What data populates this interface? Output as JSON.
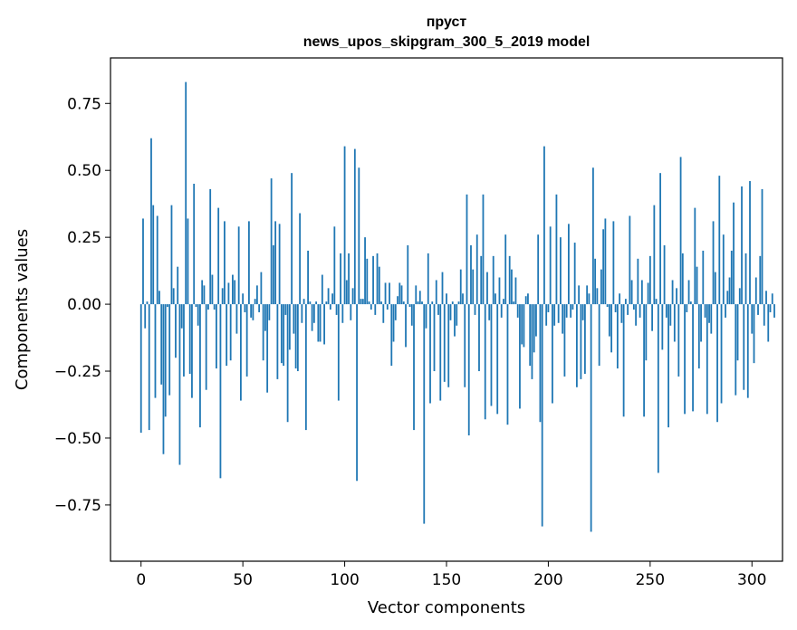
{
  "chart_data": {
    "type": "bar",
    "title_lines": [
      "пруст",
      "news_upos_skipgram_300_5_2019 model"
    ],
    "xlabel": "Vector components",
    "ylabel": "Components values",
    "xlim": [
      -15,
      315
    ],
    "ylim": [
      -0.96,
      0.92
    ],
    "xticks": [
      0,
      50,
      100,
      150,
      200,
      250,
      300
    ],
    "yticks": [
      -0.75,
      -0.5,
      -0.25,
      0.0,
      0.25,
      0.5,
      0.75
    ],
    "ytick_labels": [
      "−0.75",
      "−0.50",
      "−0.25",
      "0.00",
      "0.25",
      "0.50",
      "0.75"
    ],
    "bar_color": "#1f77b4",
    "series": [
      {
        "name": "пруст",
        "values": [
          -0.48,
          0.32,
          -0.09,
          0.01,
          -0.47,
          0.62,
          0.37,
          -0.35,
          0.33,
          0.05,
          -0.3,
          -0.56,
          -0.42,
          -0.01,
          -0.34,
          0.37,
          0.06,
          -0.2,
          0.14,
          -0.6,
          -0.09,
          -0.27,
          0.83,
          0.32,
          -0.26,
          -0.35,
          0.45,
          -0.01,
          -0.08,
          -0.46,
          0.09,
          0.07,
          -0.32,
          -0.02,
          0.43,
          0.11,
          -0.02,
          -0.24,
          0.36,
          -0.65,
          0.06,
          0.31,
          -0.23,
          0.08,
          -0.21,
          0.11,
          0.09,
          -0.11,
          0.29,
          -0.36,
          0.04,
          -0.03,
          -0.27,
          0.31,
          -0.05,
          -0.06,
          0.02,
          0.07,
          -0.03,
          0.12,
          -0.21,
          -0.1,
          -0.33,
          -0.06,
          0.47,
          0.22,
          0.31,
          -0.28,
          0.3,
          -0.22,
          -0.23,
          -0.04,
          -0.44,
          -0.17,
          0.49,
          -0.11,
          -0.24,
          -0.25,
          0.34,
          -0.07,
          0.02,
          -0.47,
          0.2,
          0.01,
          -0.1,
          -0.07,
          0.01,
          -0.14,
          -0.14,
          0.11,
          -0.15,
          0.01,
          0.06,
          -0.02,
          0.04,
          0.29,
          -0.04,
          -0.36,
          0.19,
          -0.07,
          0.59,
          0.09,
          0.19,
          -0.06,
          0.06,
          0.58,
          -0.66,
          0.51,
          0.02,
          0.02,
          0.25,
          0.17,
          0.01,
          -0.02,
          0.18,
          -0.04,
          0.19,
          0.14,
          0.01,
          -0.07,
          0.08,
          -0.02,
          0.08,
          -0.23,
          -0.14,
          -0.06,
          0.03,
          0.08,
          0.07,
          0.01,
          -0.16,
          0.22,
          -0.01,
          -0.08,
          -0.47,
          0.07,
          0.01,
          0.05,
          0.01,
          -0.82,
          -0.09,
          0.19,
          -0.37,
          0.01,
          -0.25,
          0.09,
          -0.04,
          -0.36,
          0.12,
          -0.29,
          0.04,
          -0.31,
          -0.06,
          0.01,
          -0.12,
          -0.08,
          0.01,
          0.13,
          0.04,
          -0.31,
          0.41,
          -0.49,
          0.22,
          0.13,
          -0.04,
          0.26,
          -0.25,
          0.18,
          0.41,
          -0.43,
          0.12,
          -0.06,
          -0.38,
          0.18,
          0.04,
          -0.41,
          0.1,
          -0.05,
          0.02,
          0.26,
          -0.45,
          0.18,
          0.13,
          0.01,
          0.1,
          -0.05,
          -0.39,
          -0.15,
          -0.16,
          0.03,
          0.04,
          -0.23,
          -0.28,
          -0.18,
          -0.12,
          0.26,
          -0.44,
          -0.83,
          0.59,
          -0.08,
          -0.03,
          0.29,
          -0.37,
          -0.08,
          0.41,
          -0.07,
          0.25,
          -0.11,
          -0.27,
          -0.05,
          0.3,
          -0.05,
          -0.02,
          0.23,
          -0.31,
          0.07,
          -0.28,
          -0.06,
          -0.26,
          0.07,
          0.04,
          -0.85,
          0.51,
          0.17,
          0.06,
          -0.23,
          0.13,
          0.28,
          0.32,
          -0.01,
          -0.12,
          -0.18,
          0.31,
          -0.03,
          -0.24,
          0.04,
          -0.07,
          -0.42,
          0.02,
          -0.04,
          0.33,
          0.09,
          -0.02,
          -0.08,
          0.17,
          -0.05,
          0.09,
          -0.42,
          -0.21,
          0.08,
          0.18,
          -0.1,
          0.37,
          0.02,
          -0.63,
          0.49,
          -0.17,
          0.22,
          -0.05,
          -0.46,
          -0.08,
          0.09,
          -0.14,
          0.06,
          -0.27,
          0.55,
          0.19,
          -0.41,
          -0.03,
          0.09,
          0.01,
          -0.4,
          0.36,
          0.14,
          -0.24,
          -0.14,
          0.2,
          -0.05,
          -0.41,
          -0.07,
          -0.11,
          0.31,
          0.12,
          -0.44,
          0.48,
          -0.37,
          0.26,
          -0.05,
          0.05,
          0.1,
          0.2,
          0.38,
          -0.34,
          -0.21,
          0.06,
          0.44,
          -0.32,
          0.19,
          -0.35,
          0.46,
          -0.11,
          -0.22,
          0.1,
          -0.04,
          0.18,
          0.43,
          -0.08,
          0.05,
          -0.14,
          -0.03,
          0.04,
          -0.05
        ]
      }
    ]
  }
}
